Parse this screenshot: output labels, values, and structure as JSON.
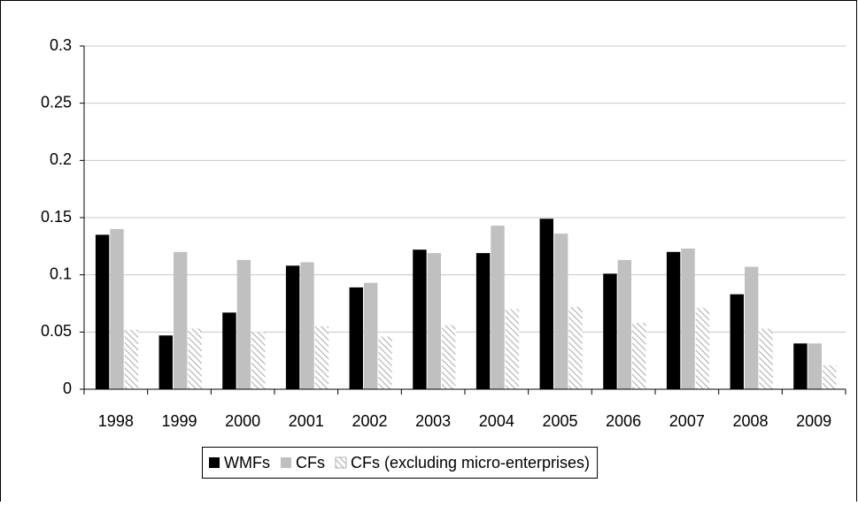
{
  "chart_data": {
    "type": "bar",
    "categories": [
      "1998",
      "1999",
      "2000",
      "2001",
      "2002",
      "2003",
      "2004",
      "2005",
      "2006",
      "2007",
      "2008",
      "2009"
    ],
    "series": [
      {
        "name": "WMFs",
        "color": "#000000",
        "values": [
          0.135,
          0.047,
          0.067,
          0.108,
          0.089,
          0.122,
          0.119,
          0.149,
          0.101,
          0.12,
          0.083,
          0.04
        ]
      },
      {
        "name": "CFs",
        "color": "#c0c0c0",
        "values": [
          0.14,
          0.12,
          0.113,
          0.111,
          0.093,
          0.119,
          0.143,
          0.136,
          0.113,
          0.123,
          0.107,
          0.04
        ]
      },
      {
        "name": "CFs (excluding micro-enterprises)",
        "color": "#b0b0b0",
        "hatch": true,
        "values": [
          0.052,
          0.053,
          0.05,
          0.055,
          0.046,
          0.056,
          0.07,
          0.072,
          0.058,
          0.071,
          0.053,
          0.021
        ]
      }
    ],
    "ylim": [
      0,
      0.3
    ],
    "yticks": [
      0,
      0.05,
      0.1,
      0.15,
      0.2,
      0.25,
      0.3
    ],
    "grid": true,
    "legend": "bottom"
  }
}
